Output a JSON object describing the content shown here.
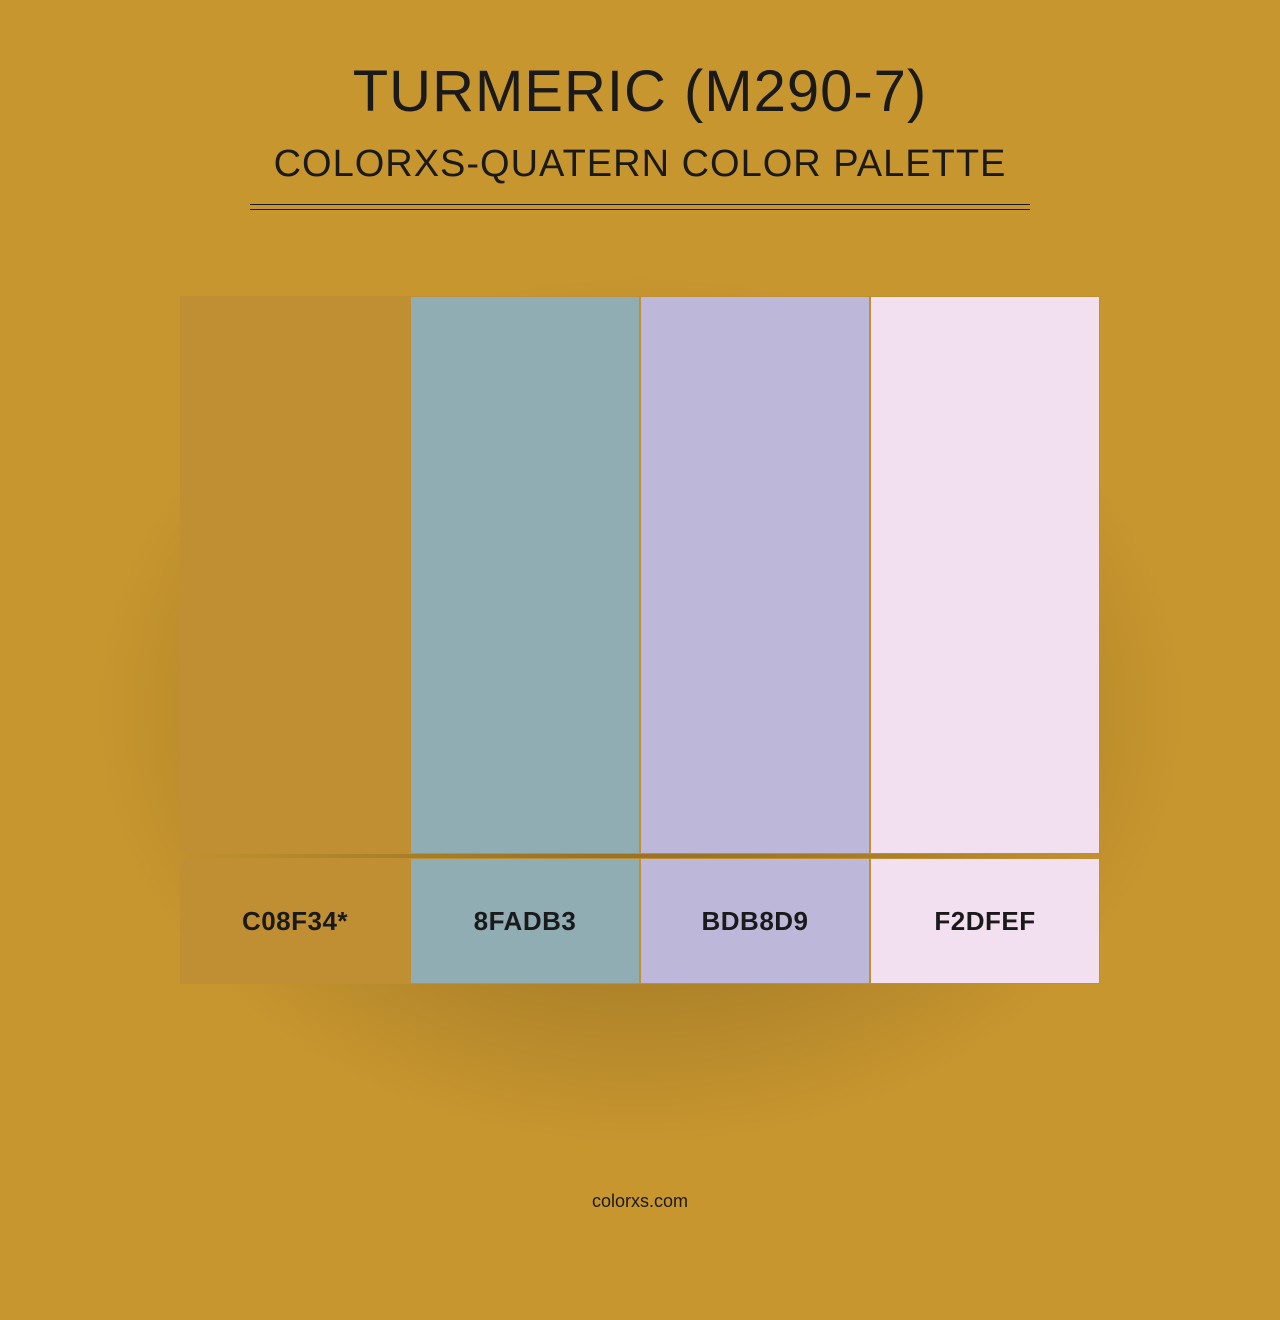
{
  "background_color": "#c8962f",
  "divider_color": "#c08f34",
  "title": "TURMERIC (M290-7)",
  "subtitle": "COLORXS-QUATERN COLOR PALETTE",
  "footer": "colorxs.com",
  "title_fontsize": 58,
  "subtitle_fontsize": 38,
  "label_fontsize": 26,
  "text_color": "#1a1a1a",
  "palette": {
    "type": "color-palette",
    "swatch_width": 230,
    "swatch_top_height": 558,
    "swatch_bottom_height": 126,
    "gap_vertical": 4,
    "swatches": [
      {
        "hex": "#c08f34",
        "label": "C08F34*"
      },
      {
        "hex": "#8fadb3",
        "label": "8FADB3"
      },
      {
        "hex": "#bdb8d9",
        "label": "BDB8D9"
      },
      {
        "hex": "#f2dfef",
        "label": "F2DFEF"
      }
    ]
  }
}
